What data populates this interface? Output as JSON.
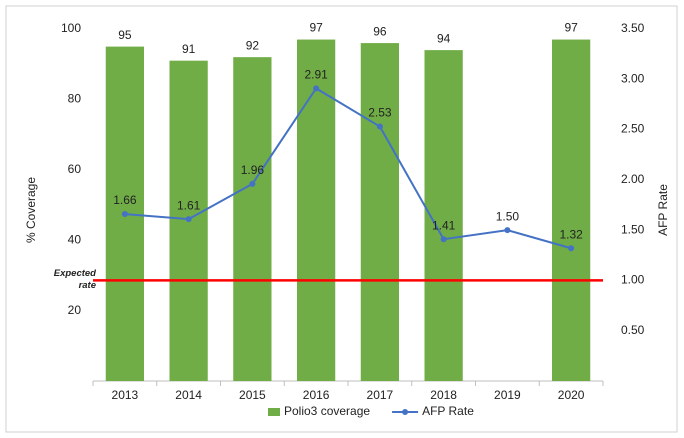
{
  "chart_data": {
    "type": "bar_line",
    "categories": [
      "2013",
      "2014",
      "2015",
      "2016",
      "2017",
      "2018",
      "2019",
      "2020"
    ],
    "series": [
      {
        "name": "Polio3 coverage",
        "type": "bar",
        "color": "#70ad47",
        "values": [
          95,
          91,
          92,
          97,
          96,
          94,
          null,
          97
        ]
      },
      {
        "name": "AFP Rate",
        "type": "line",
        "axis": "y2",
        "color": "#4472c4",
        "values": [
          1.66,
          1.61,
          1.96,
          2.91,
          2.53,
          1.41,
          1.5,
          1.32
        ],
        "value_labels": [
          "1.66",
          "1.61",
          "1.96",
          "2.91",
          "2.53",
          "1.41",
          "1.50",
          "1.32"
        ]
      }
    ],
    "ylabel": "% Coverage",
    "y2label": "AFP Rate",
    "ylim": [
      0,
      100
    ],
    "yticks": [
      20,
      40,
      60,
      80,
      100
    ],
    "y2lim": [
      0,
      3.5
    ],
    "y2ticks": [
      {
        "value": 0.5,
        "label": "0.50"
      },
      {
        "value": 1,
        "label": "1.00"
      },
      {
        "value": 1.5,
        "label": "1.50"
      },
      {
        "value": 2,
        "label": "2.00"
      },
      {
        "value": 2.5,
        "label": "2.50"
      },
      {
        "value": 3,
        "label": "3.00"
      },
      {
        "value": 3.5,
        "label": "3.50"
      }
    ],
    "reference_line": {
      "value": 1,
      "axis": "y2",
      "label": "Expected rate",
      "color": "#ff0000"
    },
    "legend": "bottom"
  }
}
